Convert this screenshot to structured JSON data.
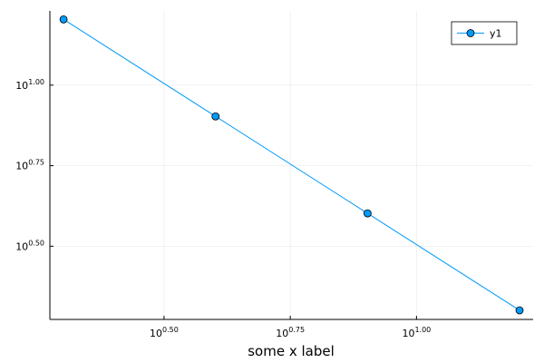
{
  "chart_data": {
    "type": "line",
    "xlabel": "some x label",
    "x": [
      2,
      4,
      8,
      16
    ],
    "series": [
      {
        "name": "y1",
        "color": "#009af9",
        "values": [
          16,
          8,
          4,
          2
        ]
      }
    ],
    "xscale": "log",
    "yscale": "log",
    "xlim": [
      1.879,
      17.02
    ],
    "ylim": [
      1.874,
      17.0
    ],
    "xticks": [
      {
        "value": 3.16228,
        "label": {
          "base": "10",
          "exponent": "0.50"
        }
      },
      {
        "value": 5.62341,
        "label": {
          "base": "10",
          "exponent": "0.75"
        }
      },
      {
        "value": 10,
        "label": {
          "base": "10",
          "exponent": "1.00"
        }
      }
    ],
    "yticks": [
      {
        "value": 3.16228,
        "label": {
          "base": "10",
          "exponent": "0.50"
        }
      },
      {
        "value": 5.62341,
        "label": {
          "base": "10",
          "exponent": "0.75"
        }
      },
      {
        "value": 10,
        "label": {
          "base": "10",
          "exponent": "1.00"
        }
      }
    ],
    "grid": true,
    "legend": "top-right"
  }
}
